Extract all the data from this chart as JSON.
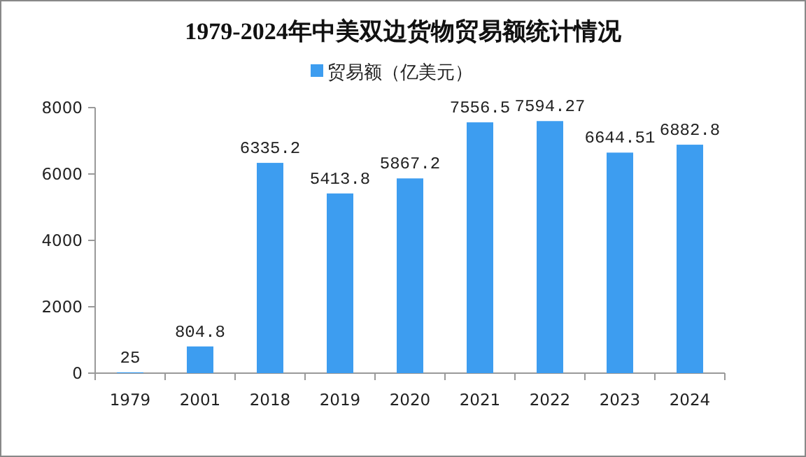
{
  "chart_data": {
    "type": "bar",
    "title": "1979-2024年中美双边货物贸易额统计情况",
    "categories": [
      "1979",
      "2001",
      "2018",
      "2019",
      "2020",
      "2021",
      "2022",
      "2023",
      "2024"
    ],
    "series": [
      {
        "name": "贸易额（亿美元）",
        "color": "#3d9df0",
        "values": [
          25,
          804.8,
          6335.2,
          5413.8,
          5867.2,
          7556.5,
          7594.27,
          6644.51,
          6882.8
        ]
      }
    ],
    "ylim": [
      0,
      8000
    ],
    "yticks": [
      0,
      2000,
      4000,
      6000,
      8000
    ],
    "data_labels": true,
    "legend": "top",
    "grid": false
  }
}
